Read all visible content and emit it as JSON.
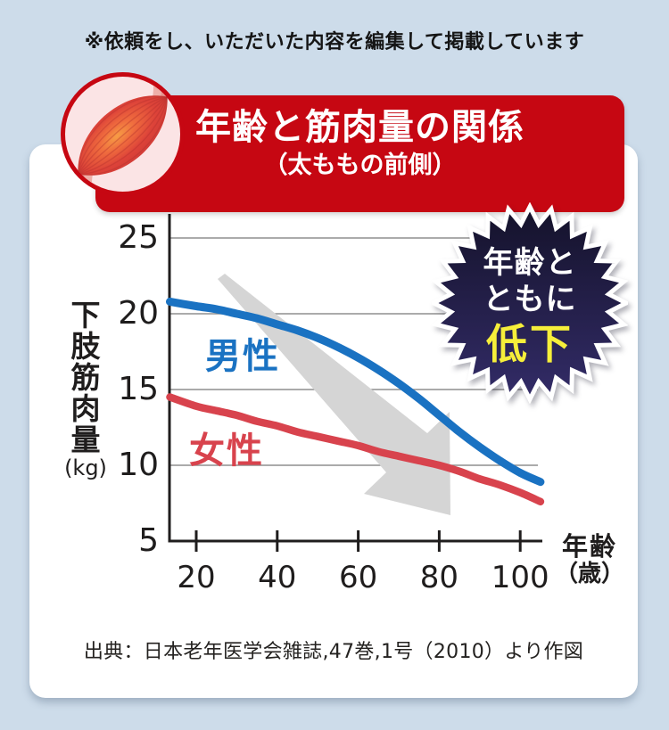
{
  "disclaimer": "※依頼をし、いただいた内容を編集して掲載しています",
  "banner": {
    "title": "年齢と筋肉量の関係",
    "subtitle": "（太ももの前側）",
    "bg_color": "#c60712",
    "text_color": "#ffffff"
  },
  "badge": {
    "line1": "年齢と",
    "line2": "ともに",
    "line3": "低下",
    "text_color": "#ffffff",
    "highlight_color": "#f6ef3a",
    "bg_top": "#14122a",
    "bg_bottom": "#332c68",
    "spikes": 28
  },
  "source": "出典：日本老年医学会雑誌,47巻,1号（2010）より作図",
  "chart_data": {
    "type": "line",
    "title": "年齢と筋肉量の関係（太ももの前側）",
    "xlabel": "年齢（歳）",
    "xlabel_lines": [
      "年齢",
      "（歳）"
    ],
    "ylabel": "下肢筋肉量",
    "ylabel_unit": "(kg)",
    "x_ticks": [
      20,
      40,
      60,
      80,
      100
    ],
    "y_ticks": [
      25,
      20,
      15,
      10,
      5
    ],
    "xlim": [
      13.5,
      105
    ],
    "ylim": [
      5,
      26.5
    ],
    "grid": "horizontal-gray",
    "gridline_color": "#8f8f8f",
    "axis_color": "#1f1d1d",
    "arrow_annotation": {
      "color": "#d5d5d5",
      "direction": "down-right"
    },
    "series": [
      {
        "name": "男性",
        "color": "#1a72c2",
        "points": [
          [
            13.5,
            20.8
          ],
          [
            20,
            20.5
          ],
          [
            25,
            20.3
          ],
          [
            30,
            20.0
          ],
          [
            35,
            19.7
          ],
          [
            40,
            19.3
          ],
          [
            45,
            18.9
          ],
          [
            50,
            18.4
          ],
          [
            55,
            17.8
          ],
          [
            60,
            17.1
          ],
          [
            65,
            16.3
          ],
          [
            70,
            15.4
          ],
          [
            75,
            14.4
          ],
          [
            80,
            13.3
          ],
          [
            85,
            12.2
          ],
          [
            90,
            11.2
          ],
          [
            95,
            10.3
          ],
          [
            100,
            9.5
          ],
          [
            105,
            8.9
          ]
        ]
      },
      {
        "name": "女性",
        "color": "#d8434d",
        "points": [
          [
            13.5,
            14.5
          ],
          [
            20,
            13.9
          ],
          [
            25,
            13.6
          ],
          [
            30,
            13.3
          ],
          [
            35,
            12.9
          ],
          [
            40,
            12.6
          ],
          [
            45,
            12.2
          ],
          [
            50,
            11.9
          ],
          [
            55,
            11.6
          ],
          [
            60,
            11.3
          ],
          [
            65,
            10.9
          ],
          [
            70,
            10.6
          ],
          [
            75,
            10.3
          ],
          [
            80,
            10.0
          ],
          [
            85,
            9.6
          ],
          [
            90,
            9.1
          ],
          [
            95,
            8.7
          ],
          [
            100,
            8.2
          ],
          [
            105,
            7.6
          ]
        ]
      }
    ]
  }
}
